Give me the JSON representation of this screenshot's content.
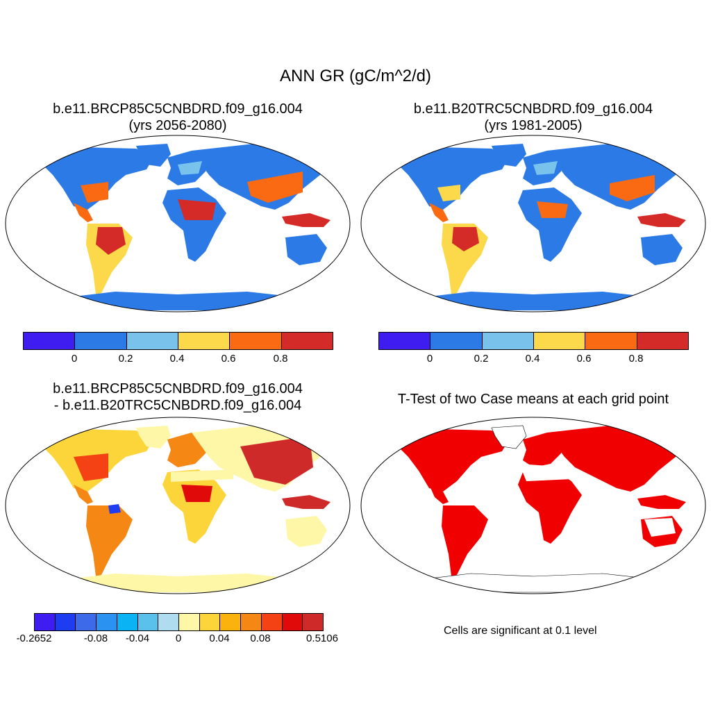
{
  "main_title": "ANN GR (gC/m^2/d)",
  "panels": [
    {
      "title_line1": "b.e11.BRCP85C5CNBDRD.f09_g16.004",
      "title_line2": "(yrs 2056-2080)"
    },
    {
      "title_line1": "b.e11.B20TRC5CNBDRD.f09_g16.004",
      "title_line2": "(yrs 1981-2005)"
    },
    {
      "title_line1": "b.e11.BRCP85C5CNBDRD.f09_g16.004",
      "title_line2": "- b.e11.B20TRC5CNBDRD.f09_g16.004"
    },
    {
      "title_line1": "T-Test of two Case means at each grid point"
    }
  ],
  "colorbar_top": {
    "colors": [
      "#3f1cf0",
      "#2b7ae6",
      "#79c2ec",
      "#fcd94a",
      "#fa6a12",
      "#d42b28"
    ],
    "labels": [
      "0",
      "0.2",
      "0.4",
      "0.6",
      "0.8"
    ]
  },
  "colorbar_diff": {
    "colors": [
      "#3f1cf0",
      "#1e3cf0",
      "#3c6ae8",
      "#2a92f0",
      "#0ab4f4",
      "#5ac0ec",
      "#b0dcf0",
      "#fef7a8",
      "#fcd53a",
      "#f9b20e",
      "#f58714",
      "#f44214",
      "#e00a0a",
      "#cf2a2a"
    ],
    "labels": [
      "-0.2652",
      "-0.08",
      "-0.04",
      "0",
      "0.04",
      "0.08",
      "0.5106"
    ]
  },
  "significance_note": "Cells are significant at 0.1 level",
  "map_colors": {
    "ocean": "#ffffff",
    "cold_land": "#2b7ae6",
    "mid_land": "#79c2ec",
    "warm_land": "#fcd94a",
    "hot_land": "#fa6a12",
    "max_land": "#d42b28",
    "diff_base": "#fef7a8",
    "diff_mid": "#fcd53a",
    "diff_high": "#f58714",
    "diff_max": "#cf2a2a",
    "diff_neg": "#2a92f0",
    "sig_red": "#f00000"
  }
}
